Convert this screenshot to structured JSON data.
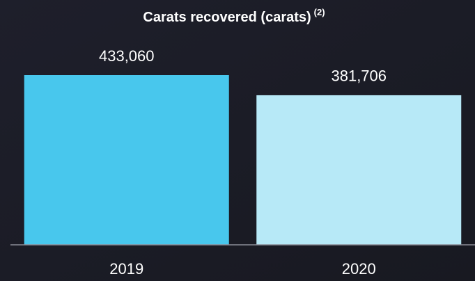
{
  "chart_data": {
    "type": "bar",
    "title": "Carats recovered (carats)",
    "title_note": "(2)",
    "categories": [
      "2019",
      "2020"
    ],
    "values": [
      433060,
      381706
    ],
    "value_labels": [
      "433,060",
      "381,706"
    ],
    "colors": [
      "#48c7ed",
      "#b7e9f7"
    ]
  }
}
